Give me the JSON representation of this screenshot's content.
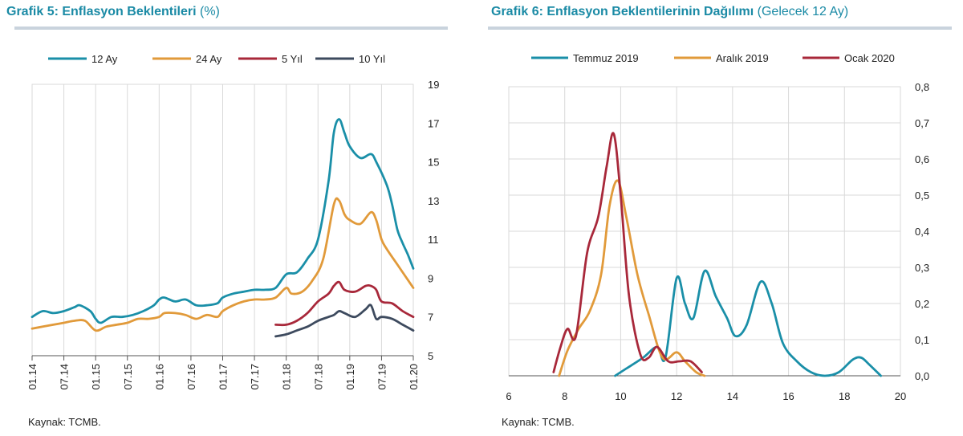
{
  "charts": [
    {
      "title_main": "Grafik 5: Enflasyon Beklentileri",
      "title_sub": "(%)",
      "source": "Kaynak: TCMB."
    },
    {
      "title_main": "Grafik 6: Enflasyon Beklentilerinin Dağılımı",
      "title_sub": "(Gelecek 12 Ay)",
      "source": "Kaynak: TCMB."
    }
  ],
  "chart_data": [
    {
      "type": "line",
      "title": "Grafik 5: Enflasyon Beklentileri (%)",
      "xlabel": "",
      "ylabel": "",
      "x_tick_labels": [
        "01.14",
        "07.14",
        "01.15",
        "07.15",
        "01.16",
        "07.16",
        "01.17",
        "07.17",
        "01.18",
        "07.18",
        "01.19",
        "07.19",
        "01.20"
      ],
      "x_range": [
        "2014-01",
        "2020-01"
      ],
      "y_axis_side": "right",
      "ylim": [
        5,
        19
      ],
      "y_ticks": [
        5,
        7,
        9,
        11,
        13,
        15,
        17,
        19
      ],
      "grid": "vertical",
      "legend": "top",
      "series": [
        {
          "name": "12 Ay",
          "color": "#1a8fa8",
          "points": [
            [
              "2014-01",
              7.0
            ],
            [
              "2014-03",
              7.3
            ],
            [
              "2014-05",
              7.2
            ],
            [
              "2014-07",
              7.3
            ],
            [
              "2014-09",
              7.5
            ],
            [
              "2014-10",
              7.6
            ],
            [
              "2014-12",
              7.3
            ],
            [
              "2015-01",
              6.9
            ],
            [
              "2015-02",
              6.7
            ],
            [
              "2015-04",
              7.0
            ],
            [
              "2015-06",
              7.0
            ],
            [
              "2015-08",
              7.1
            ],
            [
              "2015-10",
              7.3
            ],
            [
              "2015-12",
              7.6
            ],
            [
              "2016-01",
              7.9
            ],
            [
              "2016-02",
              8.0
            ],
            [
              "2016-04",
              7.8
            ],
            [
              "2016-06",
              7.9
            ],
            [
              "2016-08",
              7.6
            ],
            [
              "2016-10",
              7.6
            ],
            [
              "2016-12",
              7.7
            ],
            [
              "2017-01",
              8.0
            ],
            [
              "2017-03",
              8.2
            ],
            [
              "2017-05",
              8.3
            ],
            [
              "2017-07",
              8.4
            ],
            [
              "2017-09",
              8.4
            ],
            [
              "2017-11",
              8.5
            ],
            [
              "2018-01",
              9.2
            ],
            [
              "2018-03",
              9.3
            ],
            [
              "2018-05",
              10.0
            ],
            [
              "2018-07",
              11.0
            ],
            [
              "2018-09",
              14.0
            ],
            [
              "2018-10",
              16.5
            ],
            [
              "2018-11",
              17.2
            ],
            [
              "2018-12",
              16.5
            ],
            [
              "2019-01",
              15.8
            ],
            [
              "2019-03",
              15.2
            ],
            [
              "2019-05",
              15.4
            ],
            [
              "2019-06",
              15.0
            ],
            [
              "2019-08",
              13.8
            ],
            [
              "2019-09",
              12.8
            ],
            [
              "2019-10",
              11.5
            ],
            [
              "2019-11",
              10.8
            ],
            [
              "2019-12",
              10.2
            ],
            [
              "2020-01",
              9.5
            ]
          ]
        },
        {
          "name": "24 Ay",
          "color": "#e19a3a",
          "points": [
            [
              "2014-01",
              6.4
            ],
            [
              "2014-03",
              6.5
            ],
            [
              "2014-05",
              6.6
            ],
            [
              "2014-07",
              6.7
            ],
            [
              "2014-09",
              6.8
            ],
            [
              "2014-11",
              6.8
            ],
            [
              "2015-01",
              6.3
            ],
            [
              "2015-03",
              6.5
            ],
            [
              "2015-05",
              6.6
            ],
            [
              "2015-07",
              6.7
            ],
            [
              "2015-09",
              6.9
            ],
            [
              "2015-11",
              6.9
            ],
            [
              "2016-01",
              7.0
            ],
            [
              "2016-02",
              7.2
            ],
            [
              "2016-04",
              7.2
            ],
            [
              "2016-06",
              7.1
            ],
            [
              "2016-08",
              6.9
            ],
            [
              "2016-10",
              7.1
            ],
            [
              "2016-12",
              7.0
            ],
            [
              "2017-01",
              7.3
            ],
            [
              "2017-03",
              7.6
            ],
            [
              "2017-05",
              7.8
            ],
            [
              "2017-07",
              7.9
            ],
            [
              "2017-09",
              7.9
            ],
            [
              "2017-11",
              8.0
            ],
            [
              "2018-01",
              8.5
            ],
            [
              "2018-02",
              8.2
            ],
            [
              "2018-04",
              8.3
            ],
            [
              "2018-06",
              8.9
            ],
            [
              "2018-08",
              10.0
            ],
            [
              "2018-10",
              12.8
            ],
            [
              "2018-11",
              13.0
            ],
            [
              "2018-12",
              12.3
            ],
            [
              "2019-01",
              12.0
            ],
            [
              "2019-03",
              11.8
            ],
            [
              "2019-05",
              12.4
            ],
            [
              "2019-06",
              12.0
            ],
            [
              "2019-07",
              11.0
            ],
            [
              "2019-08",
              10.5
            ],
            [
              "2019-10",
              9.7
            ],
            [
              "2019-12",
              8.9
            ],
            [
              "2020-01",
              8.5
            ]
          ]
        },
        {
          "name": "5 Yıl",
          "color": "#a8283a",
          "points": [
            [
              "2017-11",
              6.6
            ],
            [
              "2018-01",
              6.6
            ],
            [
              "2018-03",
              6.8
            ],
            [
              "2018-05",
              7.2
            ],
            [
              "2018-07",
              7.8
            ],
            [
              "2018-09",
              8.2
            ],
            [
              "2018-10",
              8.6
            ],
            [
              "2018-11",
              8.8
            ],
            [
              "2018-12",
              8.4
            ],
            [
              "2019-02",
              8.3
            ],
            [
              "2019-04",
              8.6
            ],
            [
              "2019-05",
              8.6
            ],
            [
              "2019-06",
              8.4
            ],
            [
              "2019-07",
              7.8
            ],
            [
              "2019-09",
              7.7
            ],
            [
              "2019-11",
              7.3
            ],
            [
              "2020-01",
              7.0
            ]
          ]
        },
        {
          "name": "10 Yıl",
          "color": "#3d4a5e",
          "points": [
            [
              "2017-11",
              6.0
            ],
            [
              "2018-01",
              6.1
            ],
            [
              "2018-03",
              6.3
            ],
            [
              "2018-05",
              6.5
            ],
            [
              "2018-07",
              6.8
            ],
            [
              "2018-09",
              7.0
            ],
            [
              "2018-10",
              7.1
            ],
            [
              "2018-11",
              7.3
            ],
            [
              "2018-12",
              7.2
            ],
            [
              "2019-02",
              7.0
            ],
            [
              "2019-04",
              7.4
            ],
            [
              "2019-05",
              7.6
            ],
            [
              "2019-06",
              6.9
            ],
            [
              "2019-07",
              7.0
            ],
            [
              "2019-09",
              6.9
            ],
            [
              "2019-11",
              6.6
            ],
            [
              "2020-01",
              6.3
            ]
          ]
        }
      ]
    },
    {
      "type": "line",
      "title": "Grafik 6: Enflasyon Beklentilerinin Dağılımı (Gelecek 12 Ay)",
      "xlabel": "",
      "ylabel": "",
      "xlim": [
        6,
        20
      ],
      "x_ticks": [
        6,
        8,
        10,
        12,
        14,
        16,
        18,
        20
      ],
      "ylim": [
        0,
        0.8
      ],
      "y_ticks": [
        0.0,
        0.1,
        0.2,
        0.3,
        0.4,
        0.5,
        0.6,
        0.7,
        0.8
      ],
      "y_tick_labels": [
        "0,0",
        "0,1",
        "0,2",
        "0,3",
        "0,4",
        "0,5",
        "0,6",
        "0,7",
        "0,8"
      ],
      "y_axis_side": "right",
      "grid": "both",
      "legend": "top",
      "series": [
        {
          "name": "Temmuz 2019",
          "color": "#1a8fa8",
          "points": [
            [
              9.8,
              0.0
            ],
            [
              10.2,
              0.02
            ],
            [
              10.8,
              0.05
            ],
            [
              11.3,
              0.08
            ],
            [
              11.6,
              0.05
            ],
            [
              12.0,
              0.27
            ],
            [
              12.3,
              0.2
            ],
            [
              12.6,
              0.16
            ],
            [
              13.0,
              0.29
            ],
            [
              13.4,
              0.22
            ],
            [
              13.8,
              0.16
            ],
            [
              14.1,
              0.11
            ],
            [
              14.5,
              0.14
            ],
            [
              15.0,
              0.26
            ],
            [
              15.4,
              0.2
            ],
            [
              15.8,
              0.09
            ],
            [
              16.3,
              0.04
            ],
            [
              16.8,
              0.01
            ],
            [
              17.3,
              0.0
            ],
            [
              17.8,
              0.01
            ],
            [
              18.3,
              0.045
            ],
            [
              18.6,
              0.05
            ],
            [
              18.9,
              0.03
            ],
            [
              19.3,
              0.0
            ]
          ]
        },
        {
          "name": "Aralık 2019",
          "color": "#e19a3a",
          "points": [
            [
              7.8,
              0.0
            ],
            [
              8.1,
              0.07
            ],
            [
              8.5,
              0.13
            ],
            [
              8.9,
              0.18
            ],
            [
              9.3,
              0.28
            ],
            [
              9.6,
              0.47
            ],
            [
              9.9,
              0.54
            ],
            [
              10.2,
              0.44
            ],
            [
              10.6,
              0.28
            ],
            [
              11.0,
              0.17
            ],
            [
              11.5,
              0.05
            ],
            [
              12.0,
              0.065
            ],
            [
              12.3,
              0.04
            ],
            [
              12.7,
              0.01
            ],
            [
              13.0,
              0.0
            ]
          ]
        },
        {
          "name": "Ocak 2020",
          "color": "#a8283a",
          "points": [
            [
              7.6,
              0.01
            ],
            [
              7.85,
              0.08
            ],
            [
              8.1,
              0.13
            ],
            [
              8.4,
              0.11
            ],
            [
              8.8,
              0.34
            ],
            [
              9.2,
              0.44
            ],
            [
              9.5,
              0.58
            ],
            [
              9.75,
              0.67
            ],
            [
              10.0,
              0.5
            ],
            [
              10.3,
              0.22
            ],
            [
              10.7,
              0.06
            ],
            [
              11.0,
              0.05
            ],
            [
              11.3,
              0.08
            ],
            [
              11.7,
              0.04
            ],
            [
              12.1,
              0.04
            ],
            [
              12.5,
              0.04
            ],
            [
              12.9,
              0.01
            ]
          ]
        }
      ]
    }
  ]
}
